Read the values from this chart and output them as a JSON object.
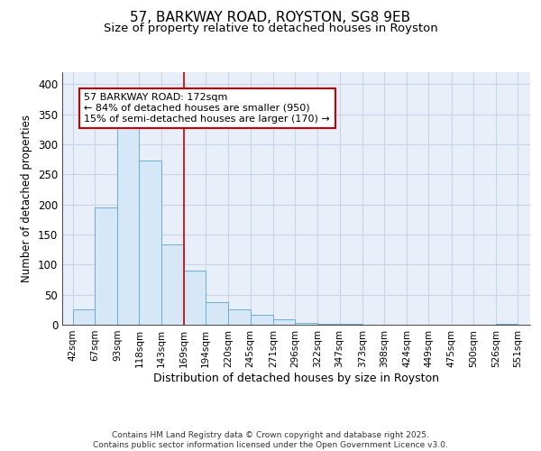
{
  "title_line1": "57, BARKWAY ROAD, ROYSTON, SG8 9EB",
  "title_line2": "Size of property relative to detached houses in Royston",
  "xlabel": "Distribution of detached houses by size in Royston",
  "ylabel": "Number of detached properties",
  "bar_left_edges": [
    42,
    67,
    93,
    118,
    143,
    169,
    194,
    220,
    245,
    271,
    296,
    322,
    347,
    373,
    398,
    424,
    449,
    475,
    500,
    526
  ],
  "bar_widths": [
    25,
    26,
    25,
    25,
    26,
    25,
    26,
    25,
    26,
    25,
    26,
    25,
    26,
    25,
    26,
    25,
    26,
    25,
    26,
    25
  ],
  "bar_heights": [
    25,
    195,
    333,
    273,
    133,
    90,
    38,
    25,
    17,
    9,
    3,
    1,
    2,
    0,
    0,
    0,
    0,
    0,
    0,
    1
  ],
  "tick_labels": [
    "42sqm",
    "67sqm",
    "93sqm",
    "118sqm",
    "143sqm",
    "169sqm",
    "194sqm",
    "220sqm",
    "245sqm",
    "271sqm",
    "296sqm",
    "322sqm",
    "347sqm",
    "373sqm",
    "398sqm",
    "424sqm",
    "449sqm",
    "475sqm",
    "500sqm",
    "526sqm",
    "551sqm"
  ],
  "tick_positions": [
    42,
    67,
    93,
    118,
    143,
    169,
    194,
    220,
    245,
    271,
    296,
    322,
    347,
    373,
    398,
    424,
    449,
    475,
    500,
    526,
    551
  ],
  "bar_facecolor": "#d6e8f7",
  "bar_edgecolor": "#6aaed6",
  "vline_x": 169,
  "vline_color": "#cc0000",
  "annotation_text": "57 BARKWAY ROAD: 172sqm\n← 84% of detached houses are smaller (950)\n15% of semi-detached houses are larger (170) →",
  "annotation_box_color": "#ffffff",
  "annotation_box_edge": "#cc0000",
  "ylim": [
    0,
    420
  ],
  "xlim": [
    30,
    565
  ],
  "grid_color": "#c8d4e8",
  "background_color": "#e8eff8",
  "footer_text": "Contains HM Land Registry data © Crown copyright and database right 2025.\nContains public sector information licensed under the Open Government Licence v3.0.",
  "title_fontsize": 11,
  "subtitle_fontsize": 9.5,
  "axis_label_fontsize": 9,
  "tick_fontsize": 7.5,
  "annotation_fontsize": 8,
  "ylabel_fontsize": 8.5
}
